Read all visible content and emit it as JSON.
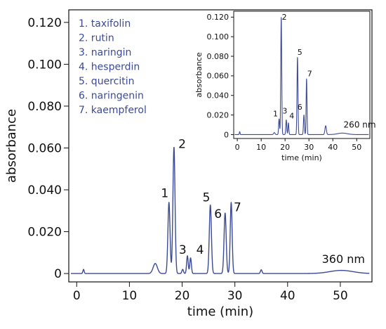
{
  "colors": {
    "trace": "#3c4a96",
    "legend_text": "#3c4a96",
    "axis": "#111111"
  },
  "legend": {
    "items": [
      "1. taxifolin",
      "2. rutin",
      "3. naringin",
      "4. hesperdin",
      "5. quercitin",
      "6. naringenin",
      "7. kaempferol"
    ]
  },
  "chart_data": [
    {
      "type": "line",
      "title": "",
      "xlabel": "time (min)",
      "ylabel": "absorbance",
      "xlim": [
        -1.5,
        56
      ],
      "ylim": [
        -0.004,
        0.126
      ],
      "x_ticks": [
        0,
        10,
        20,
        30,
        40,
        50
      ],
      "x_tick_labels": [
        "0",
        "10",
        "20",
        "30",
        "40",
        "50"
      ],
      "y_ticks": [
        0,
        0.02,
        0.04,
        0.06,
        0.08,
        0.1,
        0.12
      ],
      "y_tick_labels": [
        "0",
        "0.020",
        "0.040",
        "0.060",
        "0.080",
        "0.100",
        "0.120"
      ],
      "wavelength_label": "360 nm",
      "wavelength_label_pos": [
        46.5,
        0.005
      ],
      "baseline": 0.0,
      "peaks": [
        {
          "rt": 1.3,
          "height": 0.002,
          "width": 0.12
        },
        {
          "rt": 14.9,
          "height": 0.0048,
          "width": 0.4
        },
        {
          "rt": 17.5,
          "height": 0.034,
          "width": 0.2
        },
        {
          "rt": 18.45,
          "height": 0.0605,
          "width": 0.2
        },
        {
          "rt": 20.1,
          "height": 0.002,
          "width": 0.15
        },
        {
          "rt": 21.0,
          "height": 0.0085,
          "width": 0.15
        },
        {
          "rt": 21.6,
          "height": 0.0075,
          "width": 0.15
        },
        {
          "rt": 25.35,
          "height": 0.0328,
          "width": 0.2
        },
        {
          "rt": 28.15,
          "height": 0.029,
          "width": 0.2
        },
        {
          "rt": 29.3,
          "height": 0.034,
          "width": 0.18
        },
        {
          "rt": 35.0,
          "height": 0.0018,
          "width": 0.15
        },
        {
          "rt": 50.2,
          "height": 0.0015,
          "width": 2.2
        }
      ],
      "peak_labels": [
        {
          "text": "1",
          "x": 16.7,
          "y": 0.0365
        },
        {
          "text": "2",
          "x": 20.0,
          "y": 0.06
        },
        {
          "text": "3",
          "x": 20.1,
          "y": 0.0095
        },
        {
          "text": "4",
          "x": 23.4,
          "y": 0.0095
        },
        {
          "text": "5",
          "x": 24.6,
          "y": 0.0345
        },
        {
          "text": "6",
          "x": 26.8,
          "y": 0.0265
        },
        {
          "text": "7",
          "x": 30.5,
          "y": 0.0298
        }
      ]
    },
    {
      "type": "line",
      "title": "",
      "xlabel": "time (min)",
      "ylabel": "absorbance",
      "xlim": [
        -1.5,
        55.5
      ],
      "ylim": [
        -0.004,
        0.126
      ],
      "x_ticks": [
        0,
        10,
        20,
        30,
        40,
        50
      ],
      "x_tick_labels": [
        "0",
        "10",
        "20",
        "30",
        "40",
        "50"
      ],
      "y_ticks": [
        0,
        0.02,
        0.04,
        0.06,
        0.08,
        0.1,
        0.12
      ],
      "y_tick_labels": [
        "0",
        "0.020",
        "0.040",
        "0.060",
        "0.080",
        "0.100",
        "0.120"
      ],
      "wavelength_label": "260 nm",
      "wavelength_label_pos": [
        44.5,
        0.007
      ],
      "baseline": 0.0,
      "peaks": [
        {
          "rt": 1.0,
          "height": 0.003,
          "width": 0.15
        },
        {
          "rt": 15.5,
          "height": 0.002,
          "width": 0.3
        },
        {
          "rt": 17.5,
          "height": 0.016,
          "width": 0.2
        },
        {
          "rt": 18.4,
          "height": 0.12,
          "width": 0.2
        },
        {
          "rt": 20.5,
          "height": 0.015,
          "width": 0.2
        },
        {
          "rt": 21.4,
          "height": 0.012,
          "width": 0.18
        },
        {
          "rt": 25.2,
          "height": 0.079,
          "width": 0.2
        },
        {
          "rt": 27.9,
          "height": 0.02,
          "width": 0.2
        },
        {
          "rt": 29.0,
          "height": 0.057,
          "width": 0.18
        },
        {
          "rt": 37.0,
          "height": 0.009,
          "width": 0.3
        },
        {
          "rt": 44.0,
          "height": 0.0015,
          "width": 2.0
        }
      ],
      "peak_labels": [
        {
          "text": "1",
          "x": 16.0,
          "y": 0.0185
        },
        {
          "text": "2",
          "x": 19.7,
          "y": 0.1175
        },
        {
          "text": "3",
          "x": 19.9,
          "y": 0.0215
        },
        {
          "text": "4",
          "x": 22.8,
          "y": 0.0165
        },
        {
          "text": "5",
          "x": 26.2,
          "y": 0.0815
        },
        {
          "text": "6",
          "x": 26.2,
          "y": 0.0255
        },
        {
          "text": "7",
          "x": 30.3,
          "y": 0.0595
        }
      ]
    }
  ]
}
